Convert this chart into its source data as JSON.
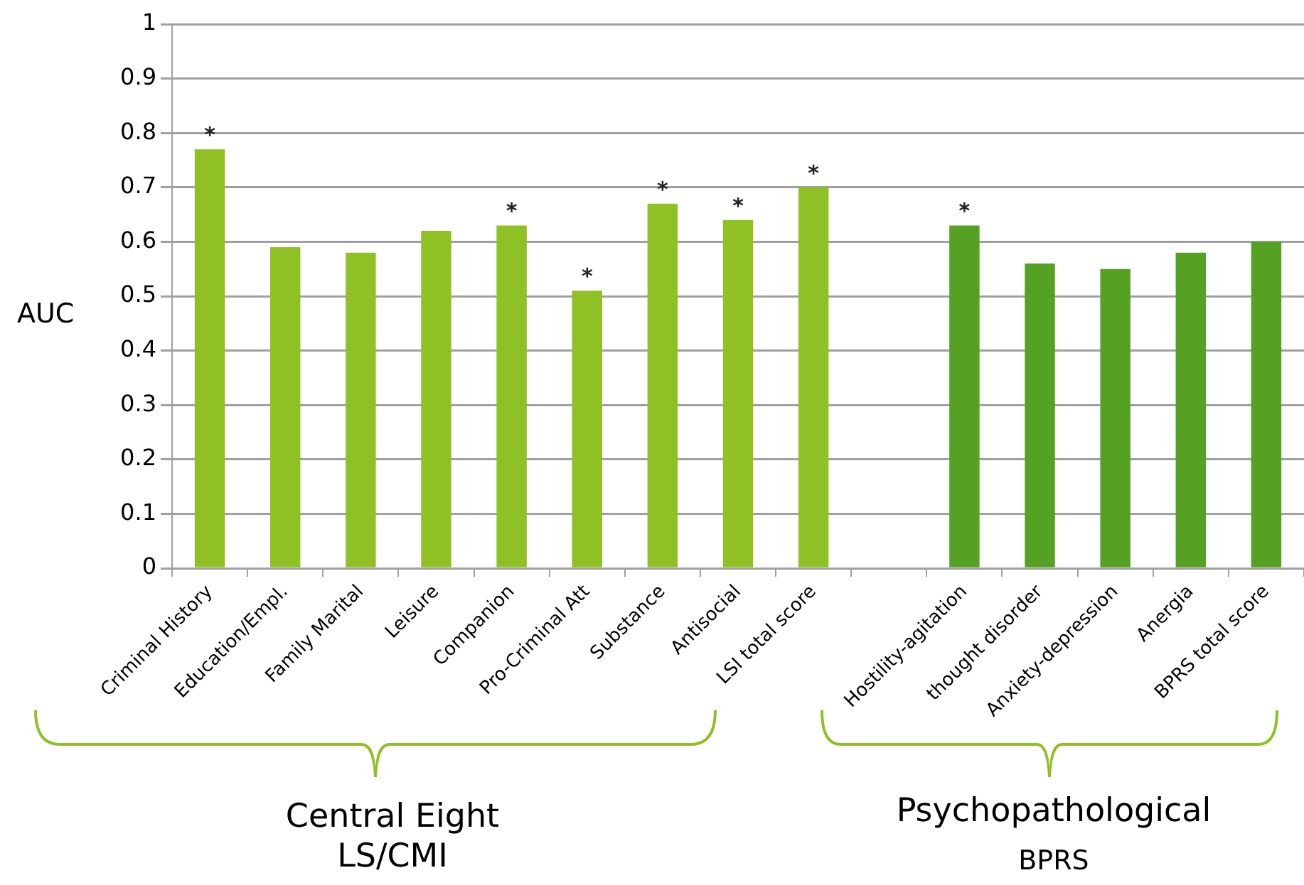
{
  "chart_data": {
    "type": "bar",
    "ylabel": "AUC",
    "categories": [
      "Criminal History",
      "Education/Empl.",
      "Family Marital",
      "Leisure",
      "Companion",
      "Pro-Criminal Att",
      "Substance",
      "Antisocial",
      "LSI total score",
      null,
      "Hostility-agitation",
      "thought disorder",
      "Anxiety-depression",
      "Anergia",
      "BPRS total score"
    ],
    "values": [
      0.77,
      0.59,
      0.58,
      0.62,
      0.63,
      0.51,
      0.67,
      0.64,
      0.7,
      null,
      0.63,
      0.56,
      0.55,
      0.58,
      0.6
    ],
    "colors": [
      "#8fc125",
      "#8fc125",
      "#8fc125",
      "#8fc125",
      "#8fc125",
      "#8fc125",
      "#8fc125",
      "#8fc125",
      "#8fc125",
      "#8fc125",
      "#55a124",
      "#55a124",
      "#55a124",
      "#55a124",
      "#55a124"
    ],
    "ylim": [
      0,
      1
    ],
    "yticks": [
      0,
      0.1,
      0.2,
      0.3,
      0.4,
      0.5,
      0.6,
      0.7,
      0.8,
      0.9,
      1
    ],
    "grid": "y",
    "annotations": [
      {
        "text": "*",
        "x": "Criminal History",
        "y": 0.77
      },
      {
        "text": "*",
        "x": "Companion",
        "y": 0.63
      },
      {
        "text": "*",
        "x": "Pro-Criminal Att",
        "y": 0.51
      },
      {
        "text": "*",
        "x": "Substance",
        "y": 0.67
      },
      {
        "text": "*",
        "x": "Antisocial",
        "y": 0.64
      },
      {
        "text": "*",
        "x": "LSI total score",
        "y": 0.7
      },
      {
        "text": "*",
        "x": "Hostility-agitation",
        "y": 0.63
      },
      "Central Eight",
      "LS/CMI",
      "Psychopathological",
      "BPRS"
    ]
  }
}
